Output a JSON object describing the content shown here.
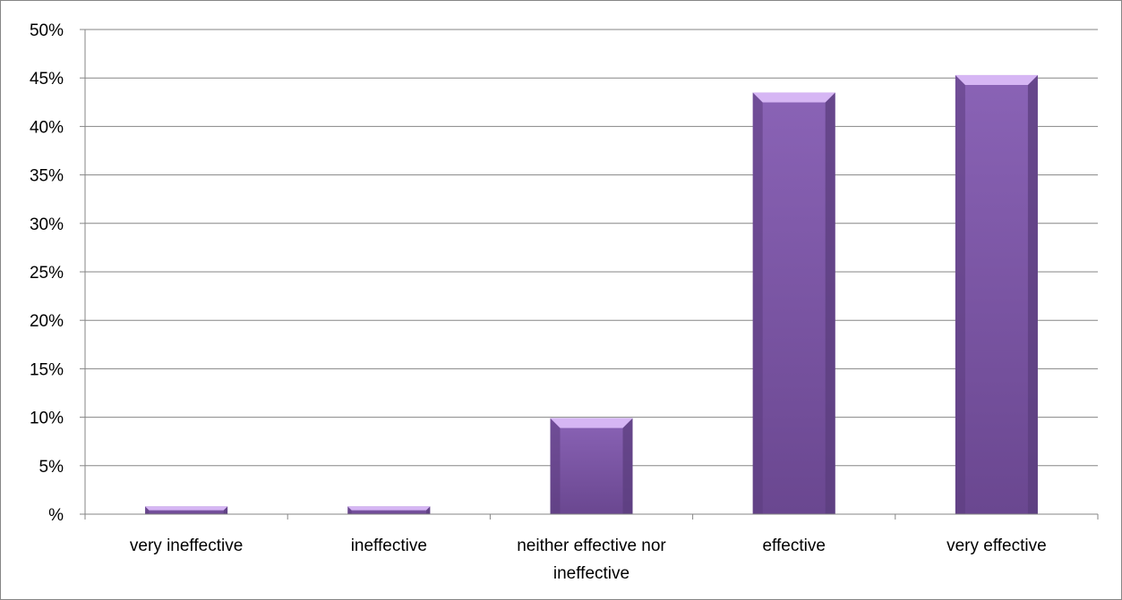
{
  "chart_data": {
    "type": "bar",
    "title": "",
    "xlabel": "",
    "ylabel": "",
    "categories": [
      [
        "very ineffective"
      ],
      [
        "ineffective"
      ],
      [
        "neither effective nor",
        "ineffective"
      ],
      [
        "effective"
      ],
      [
        "very effective"
      ]
    ],
    "values": [
      0.8,
      0.8,
      9.9,
      43.5,
      45.3
    ],
    "ylim": [
      0,
      50
    ],
    "yticks": [
      0,
      5,
      10,
      15,
      20,
      25,
      30,
      35,
      40,
      45,
      50
    ],
    "ytick_labels": [
      "%",
      "5%",
      "10%",
      "15%",
      "20%",
      "25%",
      "30%",
      "35%",
      "40%",
      "45%",
      "50%"
    ],
    "grid": true,
    "legend": "none",
    "colors": {
      "bar_face": "#7f5aa8",
      "bar_face_dark": "#6a4790",
      "bar_top": "#d6b6f4",
      "bar_side": "#5b3d7e",
      "gridline": "#868686",
      "axis": "#868686",
      "frame": "#868686"
    }
  }
}
